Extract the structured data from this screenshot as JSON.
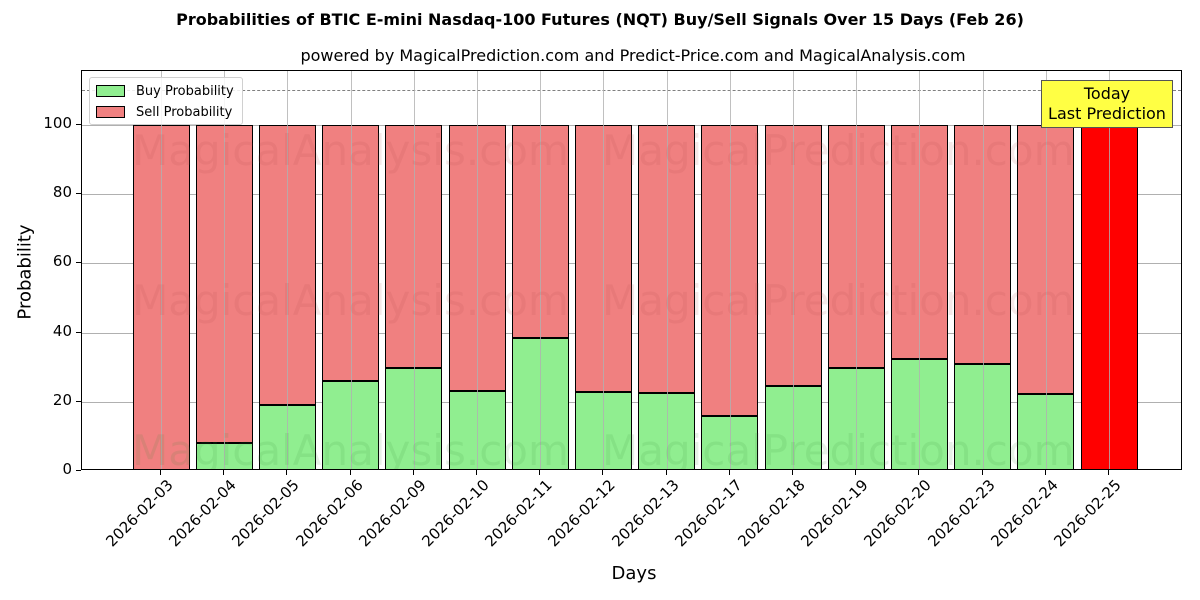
{
  "title": "Probabilities of BTIC E-mini Nasdaq-100 Futures (NQT) Buy/Sell Signals Over 15 Days (Feb 26)",
  "subtitle": "powered by MagicalPrediction.com and Predict-Price.com and MagicalAnalysis.com",
  "legend": {
    "buy_label": "Buy Probability",
    "sell_label": "Sell Probability"
  },
  "annotation": {
    "line1": "Today",
    "line2": "Last Prediction"
  },
  "watermarks": [
    "MagicalAnalysis.com",
    "MagicalPrediction.com"
  ],
  "colors": {
    "buy": "#90ee90",
    "sell": "#f08080",
    "today": "#ff0000",
    "annotation_bg": "#ffff44"
  },
  "chart_data": {
    "type": "bar",
    "stacked": true,
    "title": "Probabilities of BTIC E-mini Nasdaq-100 Futures (NQT) Buy/Sell Signals Over 15 Days (Feb 26)",
    "subtitle": "powered by MagicalPrediction.com and Predict-Price.com and MagicalAnalysis.com",
    "xlabel": "Days",
    "ylabel": "Probability",
    "ylim": [
      0,
      115
    ],
    "yticks": [
      0,
      20,
      40,
      60,
      80,
      100
    ],
    "grid": true,
    "legend_position": "upper left",
    "reference_line": {
      "y": 110,
      "style": "dashed"
    },
    "categories": [
      "2026-02-03",
      "2026-02-04",
      "2026-02-05",
      "2026-02-06",
      "2026-02-09",
      "2026-02-10",
      "2026-02-11",
      "2026-02-12",
      "2026-02-13",
      "2026-02-17",
      "2026-02-18",
      "2026-02-19",
      "2026-02-20",
      "2026-02-23",
      "2026-02-24",
      "2026-02-25"
    ],
    "series": [
      {
        "name": "Buy Probability",
        "values": [
          0,
          8.1,
          19.1,
          26.0,
          29.8,
          23.1,
          38.4,
          22.8,
          22.5,
          15.9,
          24.6,
          29.8,
          32.4,
          30.9,
          22.3,
          0
        ]
      },
      {
        "name": "Sell Probability",
        "values": [
          100,
          91.9,
          80.9,
          74.0,
          70.2,
          76.9,
          61.6,
          77.2,
          77.5,
          84.1,
          75.4,
          70.2,
          67.6,
          69.1,
          77.7,
          100
        ]
      }
    ],
    "highlight": {
      "category": "2026-02-25",
      "label": "Today\nLast Prediction",
      "color": "#ff0000"
    }
  }
}
